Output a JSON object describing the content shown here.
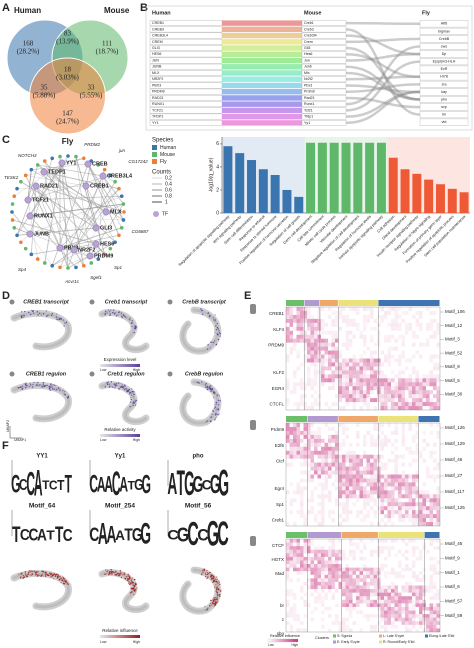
{
  "panel_labels": [
    "A",
    "B",
    "C",
    "D",
    "E",
    "F"
  ],
  "venn": {
    "sets": [
      {
        "name": "Human",
        "color": "#3b75af"
      },
      {
        "name": "Mouse",
        "color": "#5fb86a"
      },
      {
        "name": "Fly",
        "color": "#ef7f36"
      }
    ],
    "regions": [
      {
        "count": 168,
        "percent": "(28.2%)"
      },
      {
        "count": 111,
        "percent": "(18.7%)"
      },
      {
        "count": 83,
        "percent": "(13.9%)"
      },
      {
        "count": 18,
        "percent": "(3.03%)"
      },
      {
        "count": 35,
        "percent": "(5.88%)"
      },
      {
        "count": 33,
        "percent": "(5.55%)"
      },
      {
        "count": 147,
        "percent": "(24.7%)"
      }
    ]
  },
  "sankey": {
    "headers": [
      "Human",
      "Mouse",
      "Fly"
    ],
    "human": [
      "CREB1",
      "CREB3",
      "CREB3L4",
      "CREM",
      "GLI3",
      "HES6",
      "JUN",
      "JUNB",
      "MLX",
      "NR2F2",
      "PBX3",
      "PRDM9",
      "RAD21",
      "RUNX1",
      "TCF21",
      "TFDP1",
      "YY1"
    ],
    "mouse": [
      "Creb1",
      "Creb3",
      "Creb3l4",
      "Crem",
      "Gli3",
      "Hes6",
      "Jun",
      "Junb",
      "Mlx",
      "Nr2f2",
      "Pbx3",
      "Prdm9",
      "Rad21",
      "Runx1",
      "Tcf21",
      "Tfdp1",
      "Yy1"
    ],
    "fly": [
      "Atf6",
      "bigmax",
      "CrebB",
      "cwo",
      "Dp",
      "E(spl)m3-HLH",
      "EcR",
      "Hr78",
      "Jra",
      "kay",
      "pho",
      "svp",
      "tin",
      "vtd"
    ]
  },
  "network": {
    "species_title": "Species",
    "species": [
      {
        "name": "Human",
        "color": "#3b75af"
      },
      {
        "name": "Mouse",
        "color": "#5fb86a"
      },
      {
        "name": "Fly",
        "color": "#ef7f36"
      }
    ],
    "counts_title": "Counts",
    "counts": [
      0.2,
      0.4,
      0.6,
      0.8,
      1
    ],
    "tf_label": "TF",
    "tf_color": "#b9a3d4",
    "tf_nodes": [
      "YY1",
      "CREB",
      "TEDP1",
      "CREB3L4",
      "RAD21",
      "CREB1",
      "TCF21",
      "RUNX1",
      "MLX",
      "JUNB",
      "GLI3",
      "HES6",
      "PBX3",
      "NR2F2",
      "PRDM9"
    ],
    "outer_labels": [
      "PRDM2",
      "jun",
      "CG17242",
      "CG6887",
      "Sp1",
      "Sgef1",
      "Acvr1c",
      "Sp4",
      "TESK2",
      "NOTCH3"
    ]
  },
  "chart_data": {
    "type": "bar",
    "ylabel": "-log10(q_value)",
    "categories": [
      "Regulation of apoptotic signaling pathway",
      "Wnt signaling pathway",
      "Stem cell differentiation",
      "Response to ethanol",
      "Response to steroid hormone",
      "Positive regulation of hormone secretion",
      "Regulation of cell growth",
      "Germ cell development",
      "Cell fate commitment",
      "Mitotic cell cycle process",
      "Vascular development",
      "Negative regulation of cell development",
      "Regulation of hormone levels",
      "Intrinsic apoptotic signaling pathway",
      "Cell adhesion",
      "Gland development",
      "Insulin receptor signaling pathway",
      "Regulation of hippo signaling",
      "Formation of primary germ layer",
      "Positive regulation of apoptotic process",
      "Stem cell population maintenance"
    ],
    "values": [
      5.8,
      5.2,
      4.6,
      3.8,
      3.3,
      2.0,
      1.4,
      6.1,
      6.1,
      6.1,
      6.1,
      6.1,
      6.1,
      6.1,
      4.8,
      3.8,
      3.4,
      2.9,
      2.5,
      2.1,
      1.8
    ],
    "colors": [
      "#3b75af",
      "#3b75af",
      "#3b75af",
      "#3b75af",
      "#3b75af",
      "#3b75af",
      "#3b75af",
      "#5fb86a",
      "#5fb86a",
      "#5fb86a",
      "#5fb86a",
      "#5fb86a",
      "#5fb86a",
      "#5fb86a",
      "#ef5a36",
      "#ef5a36",
      "#ef5a36",
      "#ef5a36",
      "#ef5a36",
      "#ef5a36",
      "#ef5a36"
    ],
    "ylim": [
      0,
      6.6
    ],
    "yticks": [
      0,
      2,
      4,
      6
    ]
  },
  "umap": {
    "titles": [
      "CREB1 transcript",
      "Creb1 transcript",
      "CrebB transcript",
      "CREB1 regulon",
      "Creb1 regulon",
      "CrebB regulon"
    ],
    "expression_legend": {
      "title": "Expression level",
      "low": "Low",
      "high": "High"
    },
    "activity_legend": {
      "title": "Relative activity",
      "low": "Low",
      "high": "High"
    },
    "axes": [
      "UMAP1",
      "UMAP2"
    ]
  },
  "heatmaps": [
    {
      "genes": [
        "CREB1",
        "KLF4",
        "PRDM9",
        "KLF2",
        "EGR4",
        "CTCFL"
      ],
      "motifs": [
        "Motif_106",
        "Motif_12",
        "Motif_3",
        "Motif_52",
        "Motif_9",
        "Motif_5",
        "Motif_30"
      ]
    },
    {
      "genes": [
        "Prdm9",
        "E2f6",
        "Ctcf",
        "Egr4",
        "Sp1",
        "Creb1"
      ],
      "motifs": [
        "Motif_126",
        "Motif_129",
        "Motif_46",
        "Motif_27",
        "Motif_117",
        "Motif_125"
      ]
    },
    {
      "genes": [
        "CTCF",
        "HGTX",
        "Mad",
        "br",
        "z",
        "sbo"
      ],
      "motifs": [
        "Motif_45",
        "Motif_9",
        "Motif_1",
        "Motif_6",
        "Motif_57",
        "Motif_59"
      ]
    }
  ],
  "heatmap_legend": {
    "title": "Relative influence",
    "low": "Low",
    "high": "High",
    "clusters_title": "Clusters",
    "clusters": [
      {
        "name": "S: Sgonia",
        "color": "#6cbf6a"
      },
      {
        "name": "E: Early S'cyte",
        "color": "#b29ad0"
      },
      {
        "name": "L: Late S'cyte",
        "color": "#f0a868"
      },
      {
        "name": "R: Round/Early S'tid",
        "color": "#ece27a"
      },
      {
        "name": "Elong./Late S'tid",
        "color": "#3f74b0"
      }
    ]
  },
  "logos": [
    {
      "name": "YY1",
      "seq": "GCCATCTT"
    },
    {
      "name": "Yy1",
      "seq": "CAACATGG"
    },
    {
      "name": "pho",
      "seq": "ATGGCGG"
    },
    {
      "name": "Motif_64",
      "seq": "TCCATTC"
    },
    {
      "name": "Motif_254",
      "seq": "CAAATGG"
    },
    {
      "name": "Motif_56",
      "seq": "CGCCGC"
    }
  ],
  "influence_legend": {
    "title": "Relative influence",
    "low": "Low",
    "high": "High"
  }
}
